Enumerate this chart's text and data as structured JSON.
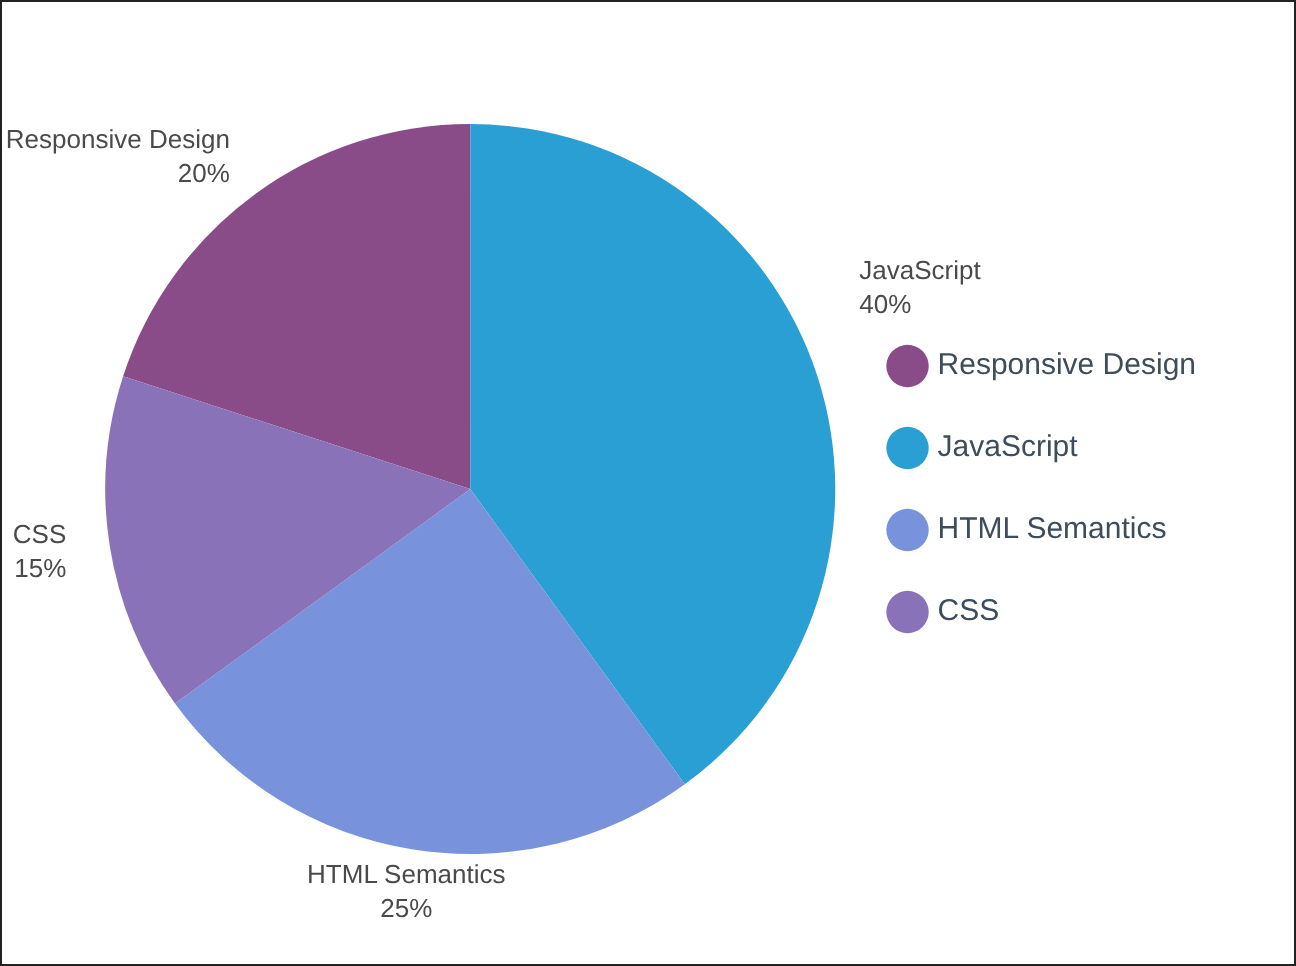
{
  "chart_data": {
    "type": "pie",
    "categories": [
      "Responsive Design",
      "JavaScript",
      "HTML Semantics",
      "CSS"
    ],
    "values": [
      20,
      40,
      25,
      15
    ],
    "colors": [
      "#8a4c88",
      "#2a9fd4",
      "#7893dc",
      "#8a72b8"
    ],
    "value_labels": [
      "20%",
      "40%",
      "25%",
      "15%"
    ],
    "legend": "right"
  }
}
